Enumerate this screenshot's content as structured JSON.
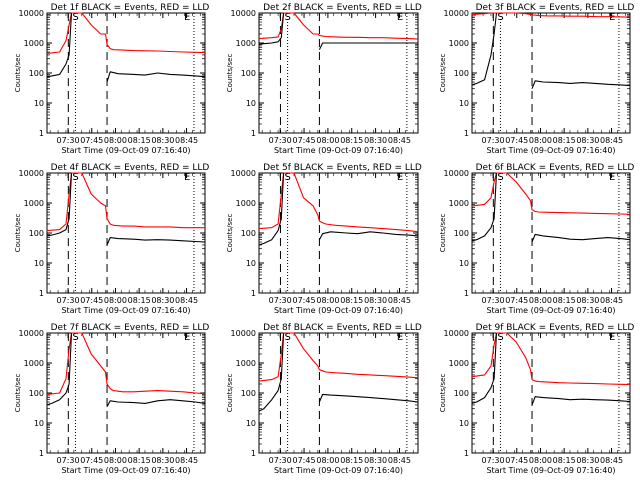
{
  "chart_data": [
    {
      "type": "line",
      "title": "Det 1f BLACK = Events, RED = LLD",
      "xlabel": "Start Time (09-Oct-09 07:16:40)",
      "ylabel": "Counts/sec",
      "y_scale": "log",
      "ylim": [
        1,
        10000
      ],
      "y_ticks": [
        "1",
        "10",
        "100",
        "1000",
        "10000"
      ],
      "x_range_minutes": [
        0,
        100
      ],
      "x_ticks": [
        "07:30",
        "07:45",
        "08:00",
        "08:15",
        "08:30",
        "08:45"
      ],
      "markers": [
        "S",
        "E"
      ],
      "series": [
        {
          "color": "#ff0000",
          "x": [
            0,
            8,
            12,
            14,
            15.5,
            18,
            22,
            28,
            34,
            37,
            38,
            40,
            42,
            48,
            55,
            62,
            70,
            78,
            86,
            94,
            100
          ],
          "values": [
            450,
            500,
            1200,
            4000,
            10000,
            10000,
            10000,
            4000,
            2000,
            2000,
            900,
            650,
            600,
            580,
            560,
            550,
            540,
            520,
            500,
            490,
            480
          ]
        },
        {
          "color": "#000000",
          "x": [
            0,
            3,
            8,
            12,
            14,
            15.5,
            37,
            38,
            40,
            45,
            55,
            62,
            70,
            78,
            86,
            94,
            100
          ],
          "values": [
            75,
            80,
            90,
            200,
            400,
            10000,
            null,
            50,
            110,
            95,
            90,
            85,
            100,
            90,
            85,
            80,
            75
          ]
        }
      ]
    },
    {
      "type": "line",
      "title": "Det 2f BLACK = Events, RED = LLD",
      "xlabel": "Start Time (09-Oct-09 07:16:40)",
      "ylabel": "Counts/sec",
      "y_scale": "log",
      "ylim": [
        1,
        10000
      ],
      "y_ticks": [
        "1",
        "10",
        "100",
        "1000",
        "10000"
      ],
      "x_range_minutes": [
        0,
        100
      ],
      "x_ticks": [
        "07:30",
        "07:45",
        "08:00",
        "08:15",
        "08:30",
        "08:45"
      ],
      "markers": [
        "S",
        "E"
      ],
      "series": [
        {
          "color": "#ff0000",
          "x": [
            0,
            8,
            12,
            14,
            15.5,
            18,
            22,
            28,
            34,
            37,
            38,
            40,
            42,
            48,
            55,
            62,
            70,
            78,
            86,
            94,
            100
          ],
          "values": [
            1400,
            1500,
            1600,
            3000,
            10000,
            10000,
            10000,
            4000,
            2000,
            2000,
            1800,
            1700,
            1650,
            1600,
            1550,
            1550,
            1500,
            1500,
            1450,
            1400,
            1350
          ]
        },
        {
          "color": "#000000",
          "x": [
            0,
            3,
            8,
            12,
            14,
            15.5,
            37,
            38,
            40,
            45,
            55,
            62,
            70,
            78,
            86,
            94,
            100
          ],
          "values": [
            900,
            950,
            1000,
            1100,
            1500,
            10000,
            null,
            600,
            1000,
            1000,
            1000,
            1000,
            1000,
            1000,
            1000,
            1000,
            1000
          ]
        }
      ]
    },
    {
      "type": "line",
      "title": "Det 3f BLACK = Events, RED = LLD",
      "xlabel": "Start Time (09-Oct-09 07:16:40)",
      "ylabel": "Counts/sec",
      "y_scale": "log",
      "ylim": [
        1,
        10000
      ],
      "y_ticks": [
        "1",
        "10",
        "100",
        "1000",
        "10000"
      ],
      "x_range_minutes": [
        0,
        100
      ],
      "x_ticks": [
        "07:30",
        "07:45",
        "08:00",
        "08:15",
        "08:30",
        "08:45"
      ],
      "markers": [
        "S",
        "E"
      ],
      "series": [
        {
          "color": "#ff0000",
          "x": [
            0,
            8,
            12,
            14,
            15.5,
            18,
            22,
            28,
            34,
            37,
            38,
            40,
            42,
            48,
            55,
            62,
            70,
            78,
            86,
            94,
            100
          ],
          "values": [
            9000,
            9500,
            10000,
            10000,
            10000,
            10000,
            10000,
            10000,
            9500,
            9000,
            8500,
            8500,
            8200,
            8000,
            8000,
            7800,
            7800,
            7600,
            7500,
            7400,
            7300
          ]
        },
        {
          "color": "#000000",
          "x": [
            0,
            3,
            8,
            12,
            14,
            15.5,
            37,
            38,
            40,
            45,
            55,
            62,
            70,
            78,
            86,
            94,
            100
          ],
          "values": [
            40,
            45,
            60,
            400,
            2000,
            10000,
            null,
            30,
            55,
            50,
            48,
            45,
            48,
            45,
            42,
            40,
            38
          ]
        }
      ]
    },
    {
      "type": "line",
      "title": "Det 4f BLACK = Events, RED = LLD",
      "xlabel": "Start Time (09-Oct-09 07:16:40)",
      "ylabel": "Counts/sec",
      "y_scale": "log",
      "ylim": [
        1,
        10000
      ],
      "y_ticks": [
        "1",
        "10",
        "100",
        "1000",
        "10000"
      ],
      "x_range_minutes": [
        0,
        100
      ],
      "x_ticks": [
        "07:30",
        "07:45",
        "08:00",
        "08:15",
        "08:30",
        "08:45"
      ],
      "markers": [
        "S",
        "E"
      ],
      "series": [
        {
          "color": "#ff0000",
          "x": [
            0,
            8,
            12,
            14,
            15.5,
            18,
            22,
            28,
            34,
            37,
            38,
            40,
            42,
            48,
            55,
            62,
            70,
            78,
            86,
            94,
            100
          ],
          "values": [
            120,
            130,
            200,
            2000,
            10000,
            10000,
            10000,
            2000,
            1000,
            800,
            300,
            200,
            180,
            170,
            170,
            160,
            160,
            160,
            150,
            150,
            150
          ]
        },
        {
          "color": "#000000",
          "x": [
            0,
            3,
            8,
            12,
            14,
            15.5,
            37,
            38,
            40,
            45,
            55,
            62,
            70,
            78,
            86,
            94,
            100
          ],
          "values": [
            80,
            85,
            100,
            130,
            300,
            10000,
            null,
            40,
            70,
            65,
            62,
            58,
            60,
            58,
            55,
            52,
            50
          ]
        }
      ]
    },
    {
      "type": "line",
      "title": "Det 5f BLACK = Events, RED = LLD",
      "xlabel": "Start Time (09-Oct-09 07:16:40)",
      "ylabel": "Counts/sec",
      "y_scale": "log",
      "ylim": [
        1,
        10000
      ],
      "y_ticks": [
        "1",
        "10",
        "100",
        "1000",
        "10000"
      ],
      "x_range_minutes": [
        0,
        100
      ],
      "x_ticks": [
        "07:30",
        "07:45",
        "08:00",
        "08:15",
        "08:30",
        "08:45"
      ],
      "markers": [
        "S",
        "E"
      ],
      "series": [
        {
          "color": "#ff0000",
          "x": [
            0,
            8,
            12,
            14,
            15.5,
            18,
            22,
            28,
            34,
            37,
            38,
            40,
            42,
            48,
            55,
            62,
            70,
            78,
            86,
            94,
            100
          ],
          "values": [
            140,
            150,
            200,
            2000,
            10000,
            10000,
            10000,
            1500,
            800,
            400,
            250,
            220,
            200,
            180,
            170,
            160,
            150,
            140,
            130,
            120,
            110
          ]
        },
        {
          "color": "#000000",
          "x": [
            0,
            3,
            8,
            12,
            14,
            15.5,
            37,
            38,
            40,
            45,
            55,
            62,
            70,
            78,
            86,
            94,
            100
          ],
          "values": [
            40,
            45,
            60,
            120,
            300,
            10000,
            null,
            60,
            95,
            110,
            100,
            95,
            110,
            100,
            90,
            85,
            80
          ]
        }
      ]
    },
    {
      "type": "line",
      "title": "Det 6f BLACK = Events, RED = LLD",
      "xlabel": "Start Time (09-Oct-09 07:16:40)",
      "ylabel": "Counts/sec",
      "y_scale": "log",
      "ylim": [
        1,
        10000
      ],
      "y_ticks": [
        "1",
        "10",
        "100",
        "1000",
        "10000"
      ],
      "x_range_minutes": [
        0,
        100
      ],
      "x_ticks": [
        "07:30",
        "07:45",
        "08:00",
        "08:15",
        "08:30",
        "08:45"
      ],
      "markers": [
        "S",
        "E"
      ],
      "series": [
        {
          "color": "#ff0000",
          "x": [
            0,
            8,
            12,
            14,
            15.5,
            18,
            22,
            28,
            34,
            37,
            38,
            40,
            42,
            48,
            55,
            62,
            70,
            78,
            86,
            94,
            100
          ],
          "values": [
            800,
            900,
            1500,
            5000,
            10000,
            10000,
            10000,
            5000,
            2000,
            1200,
            600,
            520,
            500,
            490,
            480,
            470,
            460,
            450,
            440,
            430,
            420
          ]
        },
        {
          "color": "#000000",
          "x": [
            0,
            3,
            8,
            12,
            14,
            15.5,
            37,
            38,
            40,
            45,
            55,
            62,
            70,
            78,
            86,
            94,
            100
          ],
          "values": [
            55,
            60,
            80,
            150,
            300,
            10000,
            null,
            50,
            90,
            80,
            70,
            62,
            60,
            65,
            70,
            65,
            60
          ]
        }
      ]
    },
    {
      "type": "line",
      "title": "Det 7f BLACK = Events, RED = LLD",
      "xlabel": "Start Time (09-Oct-09 07:16:40)",
      "ylabel": "Counts/sec",
      "y_scale": "log",
      "ylim": [
        1,
        10000
      ],
      "y_ticks": [
        "1",
        "10",
        "100",
        "1000",
        "10000"
      ],
      "x_range_minutes": [
        0,
        100
      ],
      "x_ticks": [
        "07:30",
        "07:45",
        "08:00",
        "08:15",
        "08:30",
        "08:45"
      ],
      "markers": [
        "S",
        "E"
      ],
      "series": [
        {
          "color": "#ff0000",
          "x": [
            0,
            8,
            12,
            14,
            15.5,
            18,
            22,
            28,
            34,
            37,
            38,
            40,
            42,
            48,
            55,
            62,
            70,
            78,
            86,
            94,
            100
          ],
          "values": [
            90,
            100,
            300,
            3000,
            10000,
            10000,
            10000,
            2000,
            800,
            500,
            200,
            140,
            120,
            110,
            110,
            115,
            120,
            115,
            110,
            100,
            95
          ]
        },
        {
          "color": "#000000",
          "x": [
            0,
            3,
            8,
            12,
            14,
            15.5,
            37,
            38,
            40,
            45,
            55,
            62,
            70,
            78,
            86,
            94,
            100
          ],
          "values": [
            40,
            45,
            60,
            100,
            200,
            10000,
            null,
            35,
            55,
            50,
            48,
            45,
            55,
            60,
            55,
            50,
            45
          ]
        }
      ]
    },
    {
      "type": "line",
      "title": "Det 8f BLACK = Events, RED = LLD",
      "xlabel": "Start Time (09-Oct-09 07:16:40)",
      "ylabel": "Counts/sec",
      "y_scale": "log",
      "ylim": [
        1,
        10000
      ],
      "y_ticks": [
        "1",
        "10",
        "100",
        "1000",
        "10000"
      ],
      "x_range_minutes": [
        0,
        100
      ],
      "x_ticks": [
        "07:30",
        "07:45",
        "08:00",
        "08:15",
        "08:30",
        "08:45"
      ],
      "markers": [
        "S",
        "E"
      ],
      "series": [
        {
          "color": "#ff0000",
          "x": [
            0,
            8,
            12,
            14,
            15.5,
            18,
            22,
            28,
            34,
            37,
            38,
            40,
            42,
            48,
            55,
            62,
            70,
            78,
            86,
            94,
            100
          ],
          "values": [
            250,
            280,
            350,
            2000,
            10000,
            10000,
            10000,
            3000,
            1200,
            800,
            600,
            550,
            500,
            470,
            450,
            420,
            400,
            380,
            360,
            340,
            320
          ]
        },
        {
          "color": "#000000",
          "x": [
            0,
            3,
            8,
            12,
            14,
            15.5,
            37,
            38,
            40,
            45,
            55,
            62,
            70,
            78,
            86,
            94,
            100
          ],
          "values": [
            25,
            30,
            60,
            120,
            300,
            10000,
            null,
            50,
            90,
            85,
            80,
            75,
            70,
            65,
            60,
            55,
            50
          ]
        }
      ]
    },
    {
      "type": "line",
      "title": "Det 9f BLACK = Events, RED = LLD",
      "xlabel": "Start Time (09-Oct-09 07:16:40)",
      "ylabel": "Counts/sec",
      "y_scale": "log",
      "ylim": [
        1,
        10000
      ],
      "y_ticks": [
        "1",
        "10",
        "100",
        "1000",
        "10000"
      ],
      "x_range_minutes": [
        0,
        100
      ],
      "x_ticks": [
        "07:30",
        "07:45",
        "08:00",
        "08:15",
        "08:30",
        "08:45"
      ],
      "markers": [
        "S",
        "E"
      ],
      "series": [
        {
          "color": "#ff0000",
          "x": [
            0,
            8,
            12,
            14,
            15.5,
            18,
            22,
            28,
            34,
            37,
            38,
            40,
            42,
            48,
            55,
            62,
            70,
            78,
            86,
            94,
            100
          ],
          "values": [
            350,
            400,
            800,
            4000,
            10000,
            10000,
            10000,
            5000,
            1500,
            600,
            280,
            250,
            240,
            230,
            220,
            215,
            210,
            205,
            200,
            195,
            190
          ]
        },
        {
          "color": "#000000",
          "x": [
            0,
            3,
            8,
            12,
            14,
            15.5,
            37,
            38,
            40,
            45,
            55,
            62,
            70,
            78,
            86,
            94,
            100
          ],
          "values": [
            45,
            50,
            70,
            150,
            300,
            10000,
            null,
            40,
            75,
            70,
            65,
            60,
            62,
            60,
            58,
            55,
            52
          ]
        }
      ]
    }
  ]
}
